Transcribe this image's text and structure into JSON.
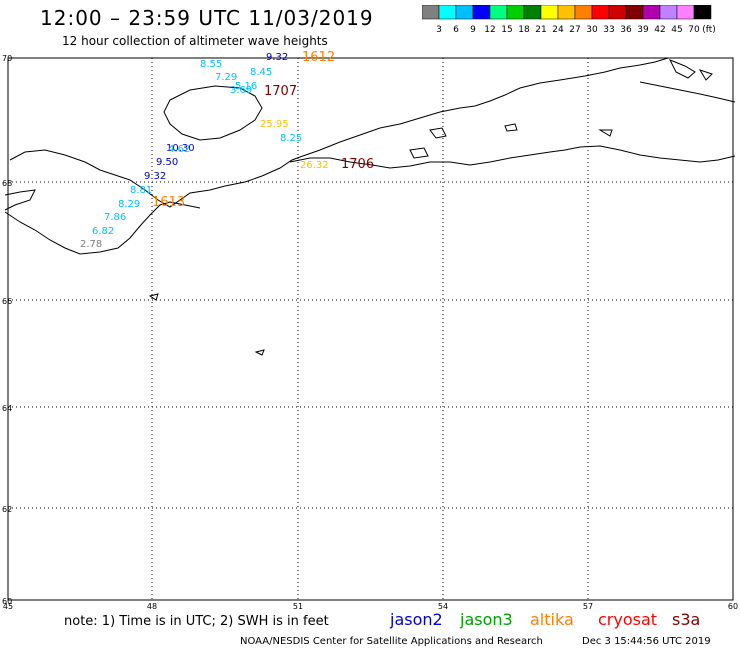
{
  "title": "12:00 – 23:59 UTC 11/03/2019",
  "subtitle": "12 hour collection of altimeter wave heights",
  "legend": {
    "unit": "(ft)",
    "colors": [
      "#808080",
      "#00ffff",
      "#00bfff",
      "#0000ff",
      "#00ff80",
      "#00d000",
      "#008000",
      "#ffff00",
      "#ffc000",
      "#ff8000",
      "#ff0000",
      "#d00000",
      "#800000",
      "#b000b0",
      "#c080ff",
      "#ff80ff",
      "#000000"
    ],
    "labels": [
      "3",
      "6",
      "9",
      "12",
      "15",
      "18",
      "21",
      "24",
      "27",
      "30",
      "33",
      "36",
      "39",
      "42",
      "45",
      "70"
    ]
  },
  "axes": {
    "lat_labels": [
      "70",
      "68",
      "66",
      "64",
      "62",
      "60"
    ],
    "lon_labels": [
      "45",
      "48",
      "51",
      "54",
      "57",
      "60"
    ]
  },
  "measurements": [
    {
      "text": "8.55",
      "color": "#00bfff"
    },
    {
      "text": "9.32",
      "color": "#0000cc"
    },
    {
      "text": "1612",
      "color": "#ff8000"
    },
    {
      "text": "8.45",
      "color": "#00bfff"
    },
    {
      "text": "7.29",
      "color": "#00bfff"
    },
    {
      "text": "5.16",
      "color": "#00bfff"
    },
    {
      "text": "3.69",
      "color": "#00bfff"
    },
    {
      "text": "1707",
      "color": "#800000"
    },
    {
      "text": "25.95",
      "color": "#ffc000"
    },
    {
      "text": "8.25",
      "color": "#00bfff"
    },
    {
      "text": "10.30",
      "color": "#0000cc"
    },
    {
      "text": "4.62",
      "color": "#00bfff"
    },
    {
      "text": "9.50",
      "color": "#0000cc"
    },
    {
      "text": "26.32",
      "color": "#ffc000"
    },
    {
      "text": "1706",
      "color": "#800000"
    },
    {
      "text": "9.32",
      "color": "#0000cc"
    },
    {
      "text": "8.81",
      "color": "#00bfff"
    },
    {
      "text": "8.29",
      "color": "#00bfff"
    },
    {
      "text": "1613",
      "color": "#ff8000"
    },
    {
      "text": "7.86",
      "color": "#00bfff"
    },
    {
      "text": "6.82",
      "color": "#00bfff"
    },
    {
      "text": "2.78",
      "color": "#808080"
    }
  ],
  "note": "note: 1) Time is in UTC; 2) SWH is in feet",
  "satellites": [
    {
      "name": "jason2",
      "color": "#0000cc"
    },
    {
      "name": "jason3",
      "color": "#00a000"
    },
    {
      "name": "altika",
      "color": "#ff8000"
    },
    {
      "name": "cryosat",
      "color": "#ff0000"
    },
    {
      "name": "s3a",
      "color": "#800000"
    }
  ],
  "credit": "NOAA/NESDIS Center for Satellite Applications and Research",
  "timestamp": "Dec 3 15:44:56 UTC 2019"
}
